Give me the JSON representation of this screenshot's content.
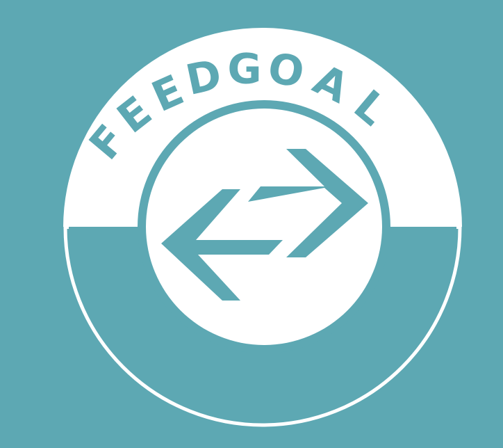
{
  "logo": {
    "wordmark": "FEEDGOAL",
    "icon": "bidirectional-arrows-icon"
  },
  "colors": {
    "background": "#5da8b3",
    "foreground": "#ffffff"
  }
}
